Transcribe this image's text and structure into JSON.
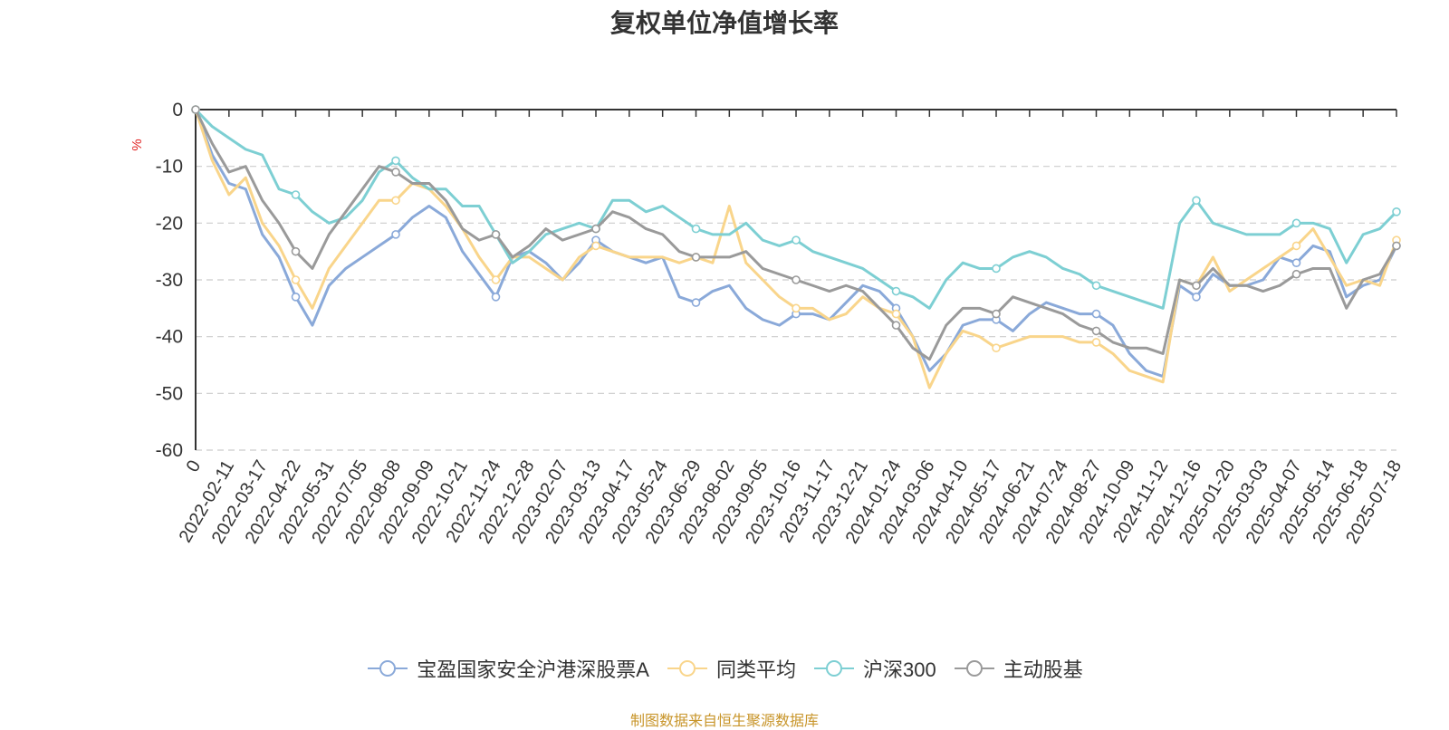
{
  "chart_data": {
    "type": "line",
    "title": "复权单位净值增长率",
    "ylabel": "%",
    "ylim": [
      -60,
      0
    ],
    "yticks": [
      0,
      -10,
      -20,
      -30,
      -40,
      -50,
      -60
    ],
    "grid": true,
    "legend_position": "bottom",
    "x_ticks": [
      "0",
      "2022-02-11",
      "2022-03-17",
      "2022-04-22",
      "2022-05-31",
      "2022-07-05",
      "2022-08-08",
      "2022-09-09",
      "2022-10-21",
      "2022-11-24",
      "2022-12-28",
      "2023-02-07",
      "2023-03-13",
      "2023-04-17",
      "2023-05-24",
      "2023-06-29",
      "2023-08-02",
      "2023-09-05",
      "2023-10-16",
      "2023-11-17",
      "2023-12-21",
      "2024-01-24",
      "2024-03-06",
      "2024-04-10",
      "2024-05-17",
      "2024-06-21",
      "2024-07-24",
      "2024-08-27",
      "2024-10-09",
      "2024-11-12",
      "2024-12-16",
      "2025-01-20",
      "2025-03-03",
      "2025-04-07",
      "2025-05-14",
      "2025-06-18",
      "2025-07-18"
    ],
    "x": [
      0,
      0.5,
      1,
      1.5,
      2,
      2.5,
      3,
      3.5,
      4,
      4.5,
      5,
      5.5,
      6,
      6.5,
      7,
      7.5,
      8,
      8.5,
      9,
      9.5,
      10,
      10.5,
      11,
      11.5,
      12,
      12.5,
      13,
      13.5,
      14,
      14.5,
      15,
      15.5,
      16,
      16.5,
      17,
      17.5,
      18,
      18.5,
      19,
      19.5,
      20,
      20.5,
      21,
      21.5,
      22,
      22.5,
      23,
      23.5,
      24,
      24.5,
      25,
      25.5,
      26,
      26.5,
      27,
      27.5,
      28,
      28.5,
      29,
      29.5,
      30,
      30.5,
      31,
      31.5,
      32,
      32.5,
      33,
      33.5,
      34,
      34.5,
      35,
      35.5,
      36
    ],
    "series": [
      {
        "name": "宝盈国家安全沪港深股票A",
        "color": "#8aa9d9",
        "values": [
          0,
          -8,
          -13,
          -14,
          -22,
          -26,
          -33,
          -38,
          -31,
          -28,
          -26,
          -24,
          -22,
          -19,
          -17,
          -19,
          -25,
          -29,
          -33,
          -26,
          -25,
          -27,
          -30,
          -27,
          -23,
          -25,
          -26,
          -27,
          -26,
          -33,
          -34,
          -32,
          -31,
          -35,
          -37,
          -38,
          -36,
          -36,
          -37,
          -34,
          -31,
          -32,
          -35,
          -40,
          -46,
          -43,
          -38,
          -37,
          -37,
          -39,
          -36,
          -34,
          -35,
          -36,
          -36,
          -38,
          -43,
          -46,
          -47,
          -31,
          -33,
          -29,
          -31,
          -31,
          -30,
          -26,
          -27,
          -24,
          -25,
          -33,
          -31,
          -30,
          -24
        ]
      },
      {
        "name": "同类平均",
        "color": "#f9d58b",
        "values": [
          0,
          -9,
          -15,
          -12,
          -20,
          -24,
          -30,
          -35,
          -28,
          -24,
          -20,
          -16,
          -16,
          -13,
          -14,
          -17,
          -21,
          -26,
          -30,
          -26,
          -26,
          -28,
          -30,
          -26,
          -24,
          -25,
          -26,
          -26,
          -26,
          -27,
          -26,
          -27,
          -17,
          -27,
          -30,
          -33,
          -35,
          -35,
          -37,
          -36,
          -33,
          -35,
          -36,
          -40,
          -49,
          -43,
          -39,
          -40,
          -42,
          -41,
          -40,
          -40,
          -40,
          -41,
          -41,
          -43,
          -46,
          -47,
          -48,
          -30,
          -31,
          -26,
          -32,
          -30,
          -28,
          -26,
          -24,
          -21,
          -26,
          -31,
          -30,
          -31,
          -23
        ]
      },
      {
        "name": "沪深300",
        "color": "#7dcfd3",
        "values": [
          0,
          -3,
          -5,
          -7,
          -8,
          -14,
          -15,
          -18,
          -20,
          -19,
          -16,
          -11,
          -9,
          -12,
          -14,
          -14,
          -17,
          -17,
          -22,
          -27,
          -25,
          -22,
          -21,
          -20,
          -21,
          -16,
          -16,
          -18,
          -17,
          -19,
          -21,
          -22,
          -22,
          -20,
          -23,
          -24,
          -23,
          -25,
          -26,
          -27,
          -28,
          -30,
          -32,
          -33,
          -35,
          -30,
          -27,
          -28,
          -28,
          -26,
          -25,
          -26,
          -28,
          -29,
          -31,
          -32,
          -33,
          -34,
          -35,
          -20,
          -16,
          -20,
          -21,
          -22,
          -22,
          -22,
          -20,
          -20,
          -21,
          -27,
          -22,
          -21,
          -18
        ]
      },
      {
        "name": "主动股基",
        "color": "#9a9a9a",
        "values": [
          0,
          -6,
          -11,
          -10,
          -16,
          -20,
          -25,
          -28,
          -22,
          -18,
          -14,
          -10,
          -11,
          -13,
          -13,
          -16,
          -21,
          -23,
          -22,
          -26,
          -24,
          -21,
          -23,
          -22,
          -21,
          -18,
          -19,
          -21,
          -22,
          -25,
          -26,
          -26,
          -26,
          -25,
          -28,
          -29,
          -30,
          -31,
          -32,
          -31,
          -32,
          -35,
          -38,
          -42,
          -44,
          -38,
          -35,
          -35,
          -36,
          -33,
          -34,
          -35,
          -36,
          -38,
          -39,
          -41,
          -42,
          -42,
          -43,
          -30,
          -31,
          -28,
          -31,
          -31,
          -32,
          -31,
          -29,
          -28,
          -28,
          -35,
          -30,
          -29,
          -24
        ]
      }
    ]
  },
  "source_note": "制图数据来自恒生聚源数据库"
}
